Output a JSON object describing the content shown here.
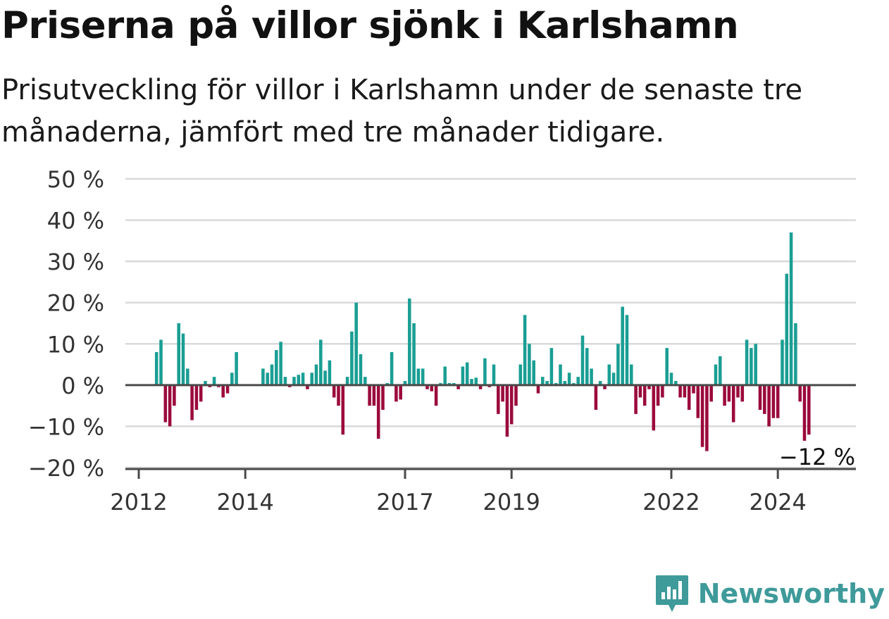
{
  "title": "Priserna på villor sjönk i Karlshamn",
  "subtitle": "Prisutveckling för villor i Karlshamn under de senaste tre månaderna, jämfört med tre månader tidigare.",
  "brand": {
    "name": "Newsworthy",
    "icon": "newsworthy-logo-icon"
  },
  "colors": {
    "positive": "#1a9e94",
    "negative": "#9b0a3c",
    "grid": "#d9d9d9",
    "zero_line": "#4a4a4a"
  },
  "chart_data": {
    "type": "bar",
    "ylim": [
      -20,
      50
    ],
    "yticks": [
      50,
      40,
      30,
      20,
      10,
      0,
      -10,
      -20
    ],
    "ytick_labels": [
      "50 %",
      "40 %",
      "30 %",
      "20 %",
      "10 %",
      "0 %",
      "−10 %",
      "−20 %"
    ],
    "xticks": [
      2012,
      2014,
      2017,
      2019,
      2022,
      2024
    ],
    "xtick_labels": [
      "2012",
      "2014",
      "2017",
      "2019",
      "2022",
      "2024"
    ],
    "x_start": "2012-01",
    "grid": true,
    "last_label": "−12 %",
    "values": [
      null,
      null,
      null,
      null,
      8,
      11,
      -9,
      -10,
      -5,
      15,
      12.5,
      4,
      -8.5,
      -6,
      -4,
      1,
      -0.5,
      2,
      -0.5,
      -3,
      -2,
      3,
      8,
      null,
      null,
      null,
      null,
      null,
      4,
      3,
      5,
      8.5,
      10.5,
      2,
      -0.5,
      2,
      2.5,
      3,
      -1,
      3,
      5,
      11,
      3.5,
      6,
      -3,
      -5,
      -12,
      2,
      13,
      20,
      7.5,
      2,
      -5,
      -5,
      -13,
      -6,
      0.5,
      8,
      -4,
      -3.5,
      1,
      21,
      15,
      4,
      4,
      -1,
      -1.5,
      -5,
      0.5,
      4.5,
      0.5,
      0.5,
      -1,
      4.5,
      5.5,
      1.5,
      1.8,
      -1,
      6.5,
      -0.5,
      5,
      -7,
      -4,
      -12.5,
      -9.5,
      -5,
      5,
      17,
      10,
      6,
      -2,
      2,
      1,
      9,
      0.5,
      5,
      1,
      3,
      0.5,
      2,
      12,
      9,
      4,
      -6,
      1,
      -1,
      5,
      3,
      10,
      19,
      17,
      5,
      -7,
      -3,
      -5,
      -1,
      -11,
      -5,
      -3,
      9,
      3,
      1,
      -3,
      -3,
      -6,
      -2,
      -8,
      -15,
      -16,
      -4,
      5,
      7,
      -5,
      -4,
      -9,
      -3,
      -4,
      11,
      9,
      10,
      -6,
      -7,
      -10,
      -8,
      -8,
      11,
      27,
      37,
      15,
      -4,
      -13.5,
      -12
    ]
  }
}
